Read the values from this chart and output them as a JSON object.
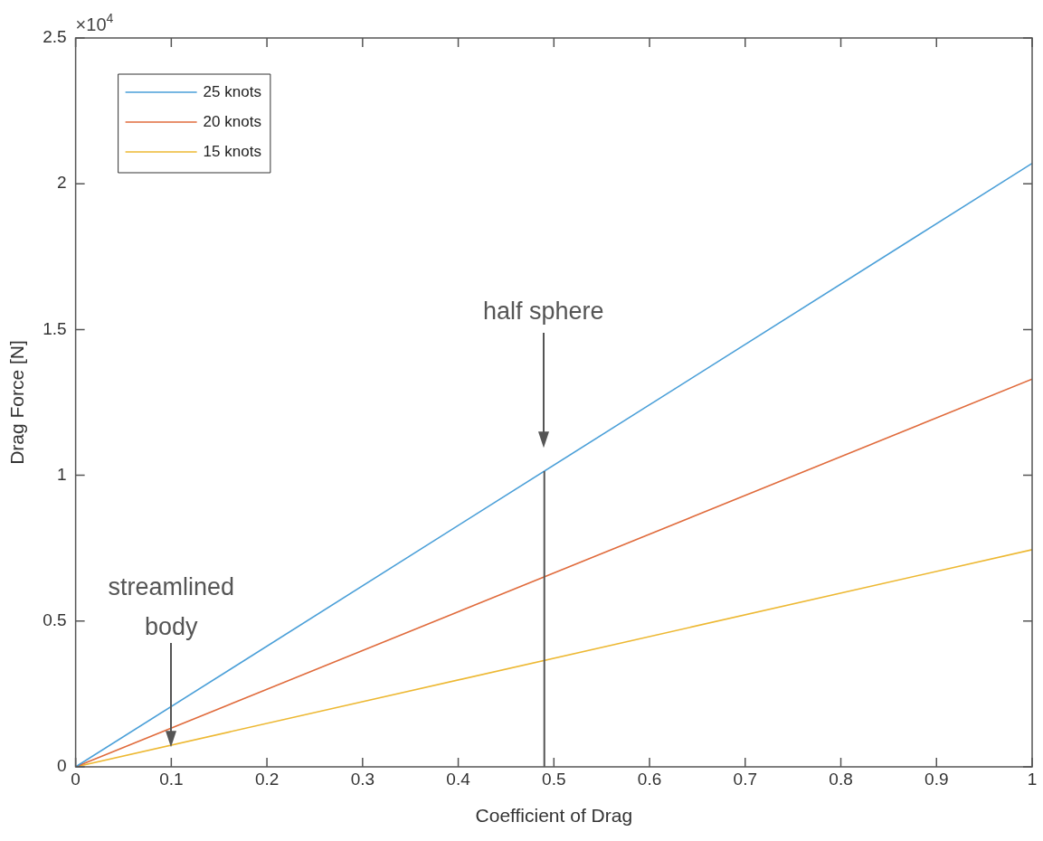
{
  "chart_data": {
    "type": "line",
    "xlabel": "Coefficient of Drag",
    "ylabel": "Drag Force [N]",
    "x": [
      0,
      1
    ],
    "series": [
      {
        "name": "25 knots",
        "color": "#4a9fd8",
        "values": [
          0,
          2.07
        ]
      },
      {
        "name": "20 knots",
        "color": "#e06b3c",
        "values": [
          0,
          1.33
        ]
      },
      {
        "name": "15 knots",
        "color": "#edb832",
        "values": [
          0,
          0.745
        ]
      }
    ],
    "xlim": [
      0,
      1
    ],
    "xticks": [
      0,
      0.1,
      0.2,
      0.3,
      0.4,
      0.5,
      0.6,
      0.7,
      0.8,
      0.9,
      1
    ],
    "ylim": [
      0,
      2.5
    ],
    "yticks": [
      0,
      0.5,
      1,
      1.5,
      2,
      2.5
    ],
    "ref_lines": [
      {
        "axis": "x",
        "value": 0.49,
        "color": "#555555"
      }
    ],
    "annotations": [
      "×10$^{4}$",
      "half sphere",
      "streamlined\nbody"
    ],
    "legend": "top left",
    "grid": false,
    "marker": "none",
    "line_style": "solid"
  }
}
